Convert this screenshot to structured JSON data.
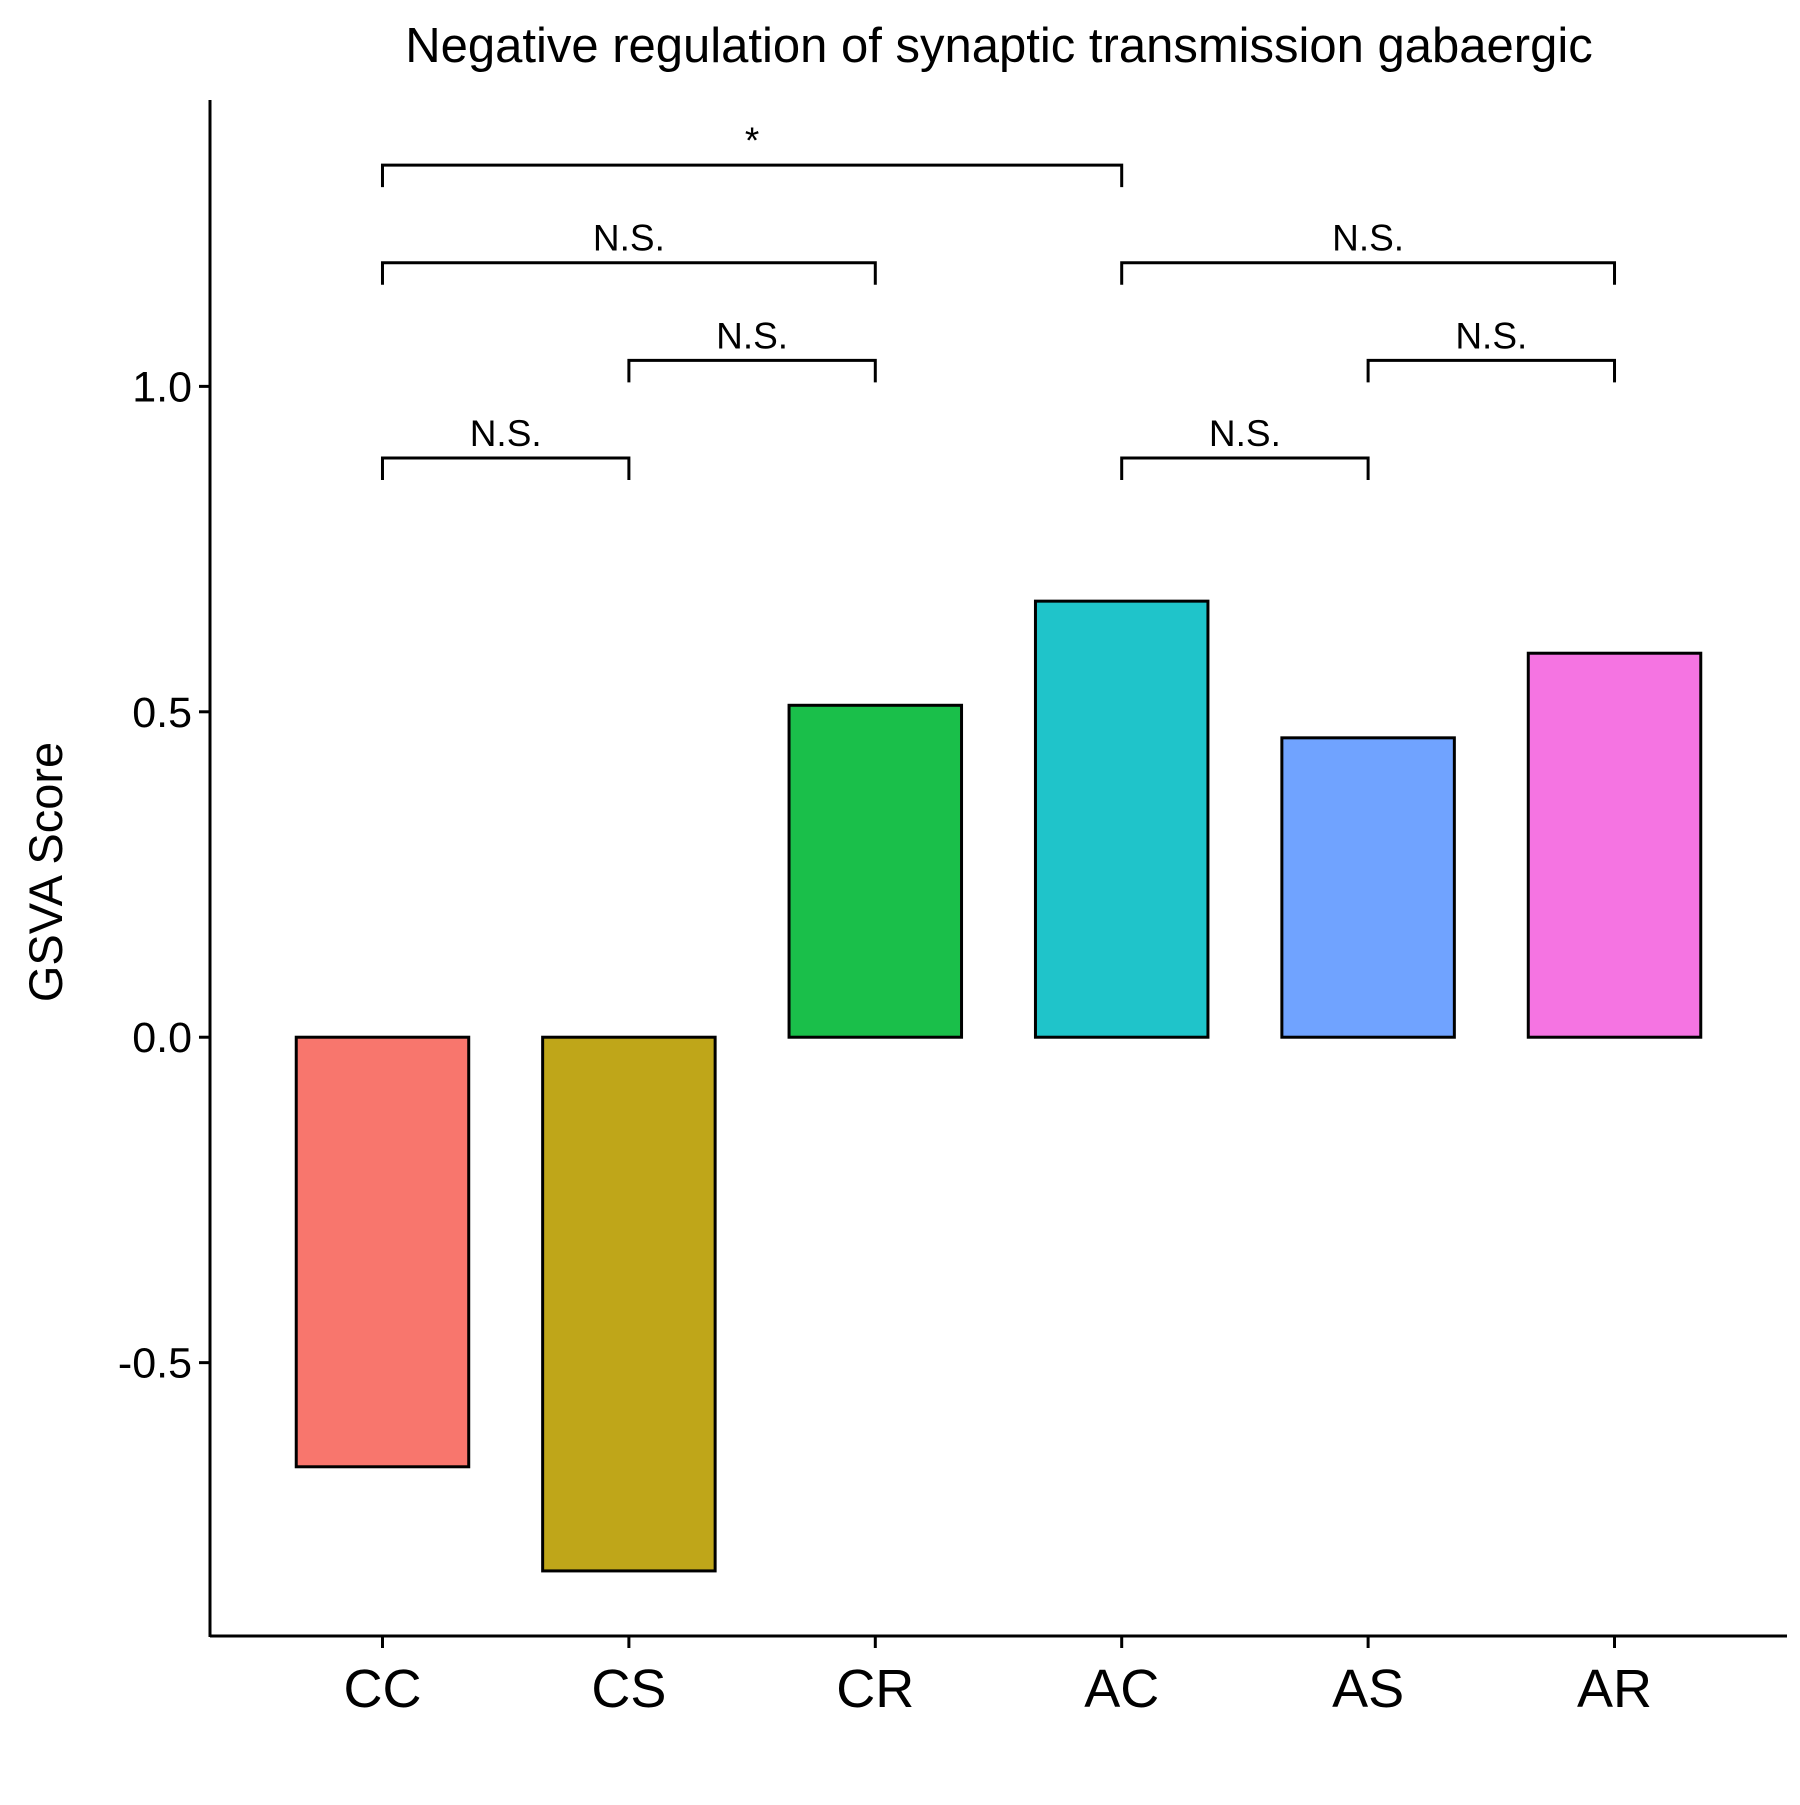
{
  "chart_data": {
    "type": "bar",
    "title": "Negative regulation of synaptic transmission gabaergic",
    "xlabel": "",
    "ylabel": "GSVA Score",
    "categories": [
      "CC",
      "CS",
      "CR",
      "AC",
      "AS",
      "AR"
    ],
    "values": [
      -0.66,
      -0.82,
      0.51,
      0.67,
      0.46,
      0.59
    ],
    "colors": [
      "#F8766D",
      "#BFA619",
      "#1ABF4A",
      "#1FC4CA",
      "#70A3FF",
      "#F574E2"
    ],
    "bar_outline": "#000000",
    "ylim": [
      -0.92,
      1.44
    ],
    "yticks": [
      -0.5,
      0.0,
      0.5,
      1.0
    ],
    "ytick_labels": [
      "-0.5",
      "0.0",
      "0.5",
      "1.0"
    ],
    "grid": false,
    "legend": "none",
    "comparisons": [
      {
        "group1": "CC",
        "group2": "CS",
        "label": "N.S.",
        "y": 0.89
      },
      {
        "group1": "CS",
        "group2": "CR",
        "label": "N.S.",
        "y": 1.04
      },
      {
        "group1": "CC",
        "group2": "CR",
        "label": "N.S.",
        "y": 1.19
      },
      {
        "group1": "CC",
        "group2": "AC",
        "label": "*",
        "y": 1.34
      },
      {
        "group1": "AC",
        "group2": "AS",
        "label": "N.S.",
        "y": 0.89
      },
      {
        "group1": "AS",
        "group2": "AR",
        "label": "N.S.",
        "y": 1.04
      },
      {
        "group1": "AC",
        "group2": "AR",
        "label": "N.S.",
        "y": 1.19
      }
    ]
  }
}
